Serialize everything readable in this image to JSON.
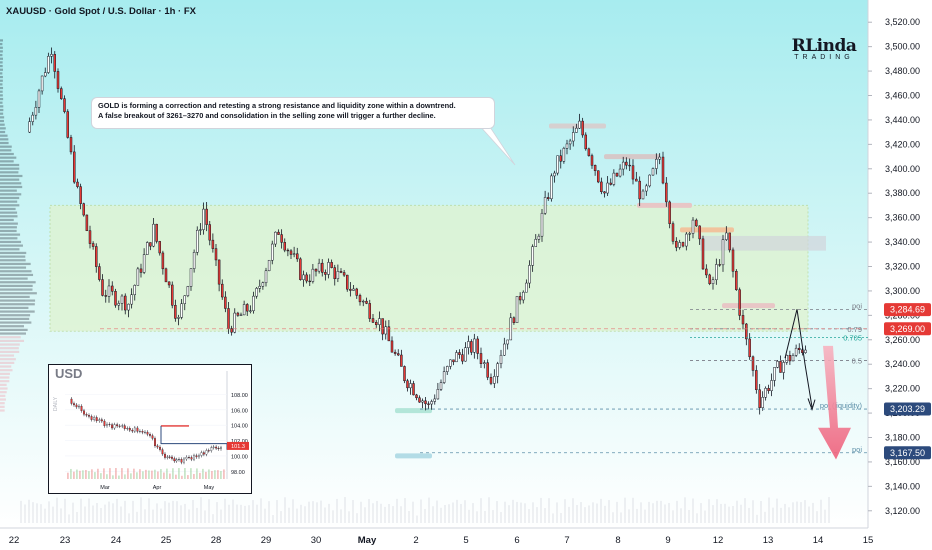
{
  "header": {
    "title": "XAUUSD · Gold Spot / U.S. Dollar · 1h · FX"
  },
  "logo": {
    "line1": "RLinda",
    "line2": "TRADING"
  },
  "annotation": {
    "line1": "GOLD is forming a correction and retesting a strong resistance and liquidity zone within a downtrend.",
    "line2": "A false breakout of 3261–3270 and consolidation in the selling zone will trigger a further decline."
  },
  "colors": {
    "up": "#ffffff",
    "down": "#e53935",
    "wick": "#131722",
    "bg_top": "#a7ecef",
    "bg_bottom": "#ffffff",
    "zone": "#dff3cf",
    "price_tag_red": "#e53935",
    "price_tag_blue": "#2c4a7c",
    "arrow": "#f27b8e"
  },
  "chart_data": [
    {
      "type": "candlestick",
      "title": "XAUUSD · Gold Spot / U.S. Dollar · 1h · FX",
      "ylim": [
        3110,
        3530
      ],
      "y_ticks": [
        "3,520.00",
        "3,500.00",
        "3,480.00",
        "3,460.00",
        "3,440.00",
        "3,420.00",
        "3,400.00",
        "3,380.00",
        "3,360.00",
        "3,340.00",
        "3,320.00",
        "3,300.00",
        "3,280.00",
        "3,260.00",
        "3,240.00",
        "3,220.00",
        "3,200.00",
        "3,180.00",
        "3,160.00",
        "3,140.00",
        "3,120.00"
      ],
      "x_ticks": [
        "22",
        "23",
        "24",
        "25",
        "28",
        "29",
        "30",
        "May",
        "2",
        "5",
        "6",
        "7",
        "8",
        "9",
        "12",
        "13",
        "14",
        "15"
      ],
      "key_points": [
        {
          "date": "22",
          "price": 3430
        },
        {
          "date": "22",
          "price": 3500
        },
        {
          "date": "23",
          "price": 3380
        },
        {
          "date": "23",
          "price": 3300
        },
        {
          "date": "24",
          "price": 3290
        },
        {
          "date": "24",
          "price": 3350
        },
        {
          "date": "25",
          "price": 3275
        },
        {
          "date": "25",
          "price": 3367
        },
        {
          "date": "28",
          "price": 3270
        },
        {
          "date": "28",
          "price": 3290
        },
        {
          "date": "29",
          "price": 3350
        },
        {
          "date": "29",
          "price": 3310
        },
        {
          "date": "30",
          "price": 3320
        },
        {
          "date": "30",
          "price": 3300
        },
        {
          "date": "May",
          "price": 3275
        },
        {
          "date": "May",
          "price": 3230
        },
        {
          "date": "2",
          "price": 3205
        },
        {
          "date": "2",
          "price": 3245
        },
        {
          "date": "5",
          "price": 3255
        },
        {
          "date": "5",
          "price": 3230
        },
        {
          "date": "5",
          "price": 3265
        },
        {
          "date": "6",
          "price": 3320
        },
        {
          "date": "6",
          "price": 3400
        },
        {
          "date": "7",
          "price": 3435
        },
        {
          "date": "7",
          "price": 3380
        },
        {
          "date": "8",
          "price": 3405
        },
        {
          "date": "8",
          "price": 3375
        },
        {
          "date": "8",
          "price": 3410
        },
        {
          "date": "9",
          "price": 3330
        },
        {
          "date": "9",
          "price": 3360
        },
        {
          "date": "9",
          "price": 3300
        },
        {
          "date": "12",
          "price": 3345
        },
        {
          "date": "12",
          "price": 3270
        },
        {
          "date": "12",
          "price": 3210
        },
        {
          "date": "13",
          "price": 3240
        },
        {
          "date": "13",
          "price": 3255
        }
      ],
      "levels": [
        {
          "label": "poi",
          "price": 3284.69,
          "tag": "3,284.69",
          "tag_color": "#e53935"
        },
        {
          "label": "0.79",
          "price": 3269.0,
          "tag": "3,269.00",
          "tag_color": "#e53935"
        },
        {
          "label": "0.705",
          "price": 3262.0
        },
        {
          "label": "0.5",
          "price": 3243.0
        },
        {
          "label": "poi (liquidity)",
          "price": 3203.29,
          "tag": "3,203.29",
          "tag_color": "#2c4a7c"
        },
        {
          "label": "poi",
          "price": 3167.5,
          "tag": "3,167.50",
          "tag_color": "#2c4a7c"
        }
      ],
      "resistance_zone": [
        3267,
        3370
      ]
    },
    {
      "type": "candlestick",
      "title": "USD",
      "ylim": [
        97,
        110
      ],
      "y_ticks": [
        "108.00",
        "106.00",
        "104.00",
        "102.00",
        "100.00",
        "98.00"
      ],
      "x_ticks": [
        "Mar",
        "Apr",
        "May"
      ],
      "current_tag": "101.3",
      "key_points": [
        {
          "date": "Mar",
          "price": 107.4
        },
        {
          "date": "Mar",
          "price": 105.0
        },
        {
          "date": "Mar",
          "price": 104.0
        },
        {
          "date": "Apr",
          "price": 103.2
        },
        {
          "date": "Apr",
          "price": 100.0
        },
        {
          "date": "Apr",
          "price": 99.3
        },
        {
          "date": "May",
          "price": 100.2
        },
        {
          "date": "May",
          "price": 101.3
        }
      ]
    }
  ]
}
